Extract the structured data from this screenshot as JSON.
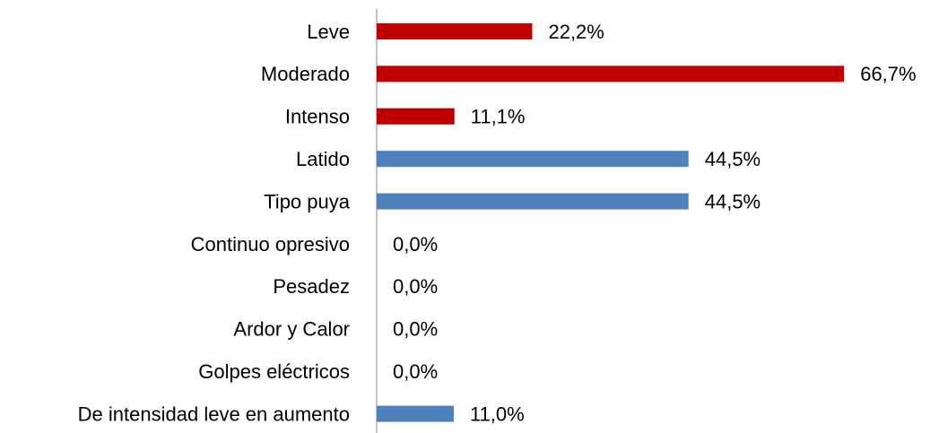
{
  "chart_data": {
    "type": "barh",
    "categories": [
      "Leve",
      "Moderado",
      "Intenso",
      "Latido",
      "Tipo puya",
      "Continuo opresivo",
      "Pesadez",
      "Ardor y Calor",
      "Golpes eléctricos",
      "De intensidad leve en aumento"
    ],
    "values": [
      22.2,
      66.7,
      11.1,
      44.5,
      44.5,
      0,
      0,
      0,
      0,
      11.0
    ],
    "value_labels": [
      "22,2%",
      "66,7%",
      "11,1%",
      "44,5%",
      "44,5%",
      "0,0%",
      "0,0%",
      "0,0%",
      "0,0%",
      "11,0%"
    ],
    "colors": [
      "#c00000",
      "#c00000",
      "#c00000",
      "#4f81bd",
      "#4f81bd",
      "#4f81bd",
      "#4f81bd",
      "#4f81bd",
      "#4f81bd",
      "#4f81bd"
    ],
    "xlim": [
      0,
      70
    ]
  }
}
